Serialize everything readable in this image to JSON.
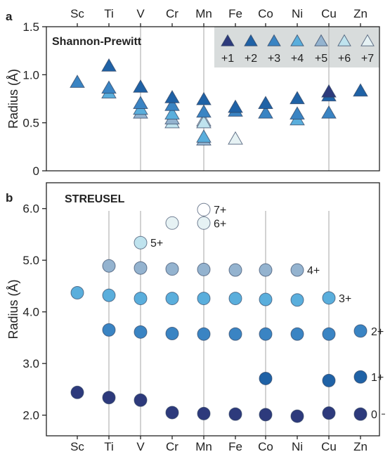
{
  "chart_data": [
    {
      "panel": "a",
      "type": "scatter",
      "title": "Shannon-Prewitt",
      "xlabel": "",
      "ylabel": "Radius (Å)",
      "categories": [
        "Sc",
        "Ti",
        "V",
        "Cr",
        "Mn",
        "Fe",
        "Co",
        "Ni",
        "Cu",
        "Zn"
      ],
      "ylim": [
        0,
        1.5
      ],
      "yticks": [
        "0",
        "0.5",
        "1.0",
        "1.5"
      ],
      "grid": "vertical lines at V, Mn, Cu",
      "legend_placement": "top-right",
      "marker": "triangle",
      "series": [
        {
          "name": "+1",
          "color": "#2d3a7c",
          "points": [
            [
              "Cu",
              0.81
            ]
          ]
        },
        {
          "name": "+2",
          "color": "#1f62a6",
          "points": [
            [
              "Ti",
              1.08
            ],
            [
              "V",
              0.86
            ],
            [
              "Cr",
              0.75
            ],
            [
              "Mn",
              0.73
            ],
            [
              "Fe",
              0.65
            ],
            [
              "Co",
              0.69
            ],
            [
              "Ni",
              0.74
            ],
            [
              "Cu",
              0.77
            ],
            [
              "Zn",
              0.82
            ]
          ]
        },
        {
          "name": "+3",
          "color": "#3a84c3",
          "points": [
            [
              "Sc",
              0.91
            ],
            [
              "Ti",
              0.85
            ],
            [
              "V",
              0.69
            ],
            [
              "Cr",
              0.67
            ],
            [
              "Mn",
              0.6
            ],
            [
              "Fe",
              0.61
            ],
            [
              "Co",
              0.59
            ],
            [
              "Ni",
              0.58
            ],
            [
              "Cu",
              0.59
            ]
          ]
        },
        {
          "name": "+4",
          "color": "#5aaedc",
          "points": [
            [
              "Ti",
              0.8
            ],
            [
              "V",
              0.63
            ],
            [
              "Cr",
              0.58
            ],
            [
              "Mn",
              0.34
            ],
            [
              "Ni",
              0.52
            ]
          ]
        },
        {
          "name": "+5",
          "color": "#94b3cf",
          "points": [
            [
              "V",
              0.59
            ],
            [
              "Cr",
              0.53
            ],
            [
              "Mn",
              0.31
            ]
          ]
        },
        {
          "name": "+6",
          "color": "#bfe3ee",
          "points": [
            [
              "Cr",
              0.49
            ],
            [
              "Mn",
              0.49
            ]
          ]
        },
        {
          "name": "+7",
          "color": "#e6f2f4",
          "points": [
            [
              "Mn",
              0.51
            ],
            [
              "Fe",
              0.32
            ]
          ]
        }
      ]
    },
    {
      "panel": "b",
      "type": "scatter",
      "title": "STREUSEL",
      "xlabel": "",
      "ylabel": "Radius (Å)",
      "categories": [
        "Sc",
        "Ti",
        "V",
        "Cr",
        "Mn",
        "Fe",
        "Co",
        "Ni",
        "Cu",
        "Zn"
      ],
      "ylim": [
        1.6,
        6.5
      ],
      "yticks": [
        "2.0",
        "3.0",
        "4.0",
        "5.0",
        "6.0"
      ],
      "grid": "vertical lines at Ti, V, Mn, Co, Cu",
      "legend_placement": "none",
      "marker": "circle",
      "series": [
        {
          "name": "0",
          "color": "#2d3a7c",
          "points": [
            [
              "Sc",
              2.44
            ],
            [
              "Ti",
              2.34
            ],
            [
              "V",
              2.29
            ],
            [
              "Cr",
              2.05
            ],
            [
              "Mn",
              2.03
            ],
            [
              "Fe",
              2.02
            ],
            [
              "Co",
              2.01
            ],
            [
              "Ni",
              1.98
            ],
            [
              "Cu",
              2.04
            ],
            [
              "Zn",
              2.02
            ]
          ]
        },
        {
          "name": "1+",
          "color": "#1f62a6",
          "points": [
            [
              "Co",
              2.71
            ],
            [
              "Cu",
              2.67
            ],
            [
              "Zn",
              2.74
            ]
          ]
        },
        {
          "name": "2+",
          "color": "#3a84c3",
          "points": [
            [
              "Ti",
              3.65
            ],
            [
              "V",
              3.61
            ],
            [
              "Cr",
              3.58
            ],
            [
              "Mn",
              3.57
            ],
            [
              "Fe",
              3.57
            ],
            [
              "Co",
              3.57
            ],
            [
              "Ni",
              3.57
            ],
            [
              "Cu",
              3.57
            ],
            [
              "Zn",
              3.63
            ]
          ]
        },
        {
          "name": "3+",
          "color": "#5aaedc",
          "points": [
            [
              "Sc",
              4.37
            ],
            [
              "Ti",
              4.32
            ],
            [
              "V",
              4.26
            ],
            [
              "Cr",
              4.26
            ],
            [
              "Mn",
              4.26
            ],
            [
              "Fe",
              4.26
            ],
            [
              "Co",
              4.24
            ],
            [
              "Ni",
              4.23
            ],
            [
              "Cu",
              4.27
            ]
          ]
        },
        {
          "name": "4+",
          "color": "#94b3cf",
          "points": [
            [
              "Ti",
              4.89
            ],
            [
              "V",
              4.85
            ],
            [
              "Cr",
              4.83
            ],
            [
              "Mn",
              4.82
            ],
            [
              "Fe",
              4.81
            ],
            [
              "Co",
              4.81
            ],
            [
              "Ni",
              4.81
            ]
          ]
        },
        {
          "name": "5+",
          "color": "#bfe3ee",
          "points": [
            [
              "V",
              5.34
            ]
          ]
        },
        {
          "name": "6+",
          "color": "#e6f2f4",
          "points": [
            [
              "Cr",
              5.72
            ],
            [
              "Mn",
              5.72
            ]
          ]
        },
        {
          "name": "7+",
          "color": "#ffffff",
          "points": [
            [
              "Mn",
              5.98
            ]
          ]
        }
      ]
    }
  ]
}
